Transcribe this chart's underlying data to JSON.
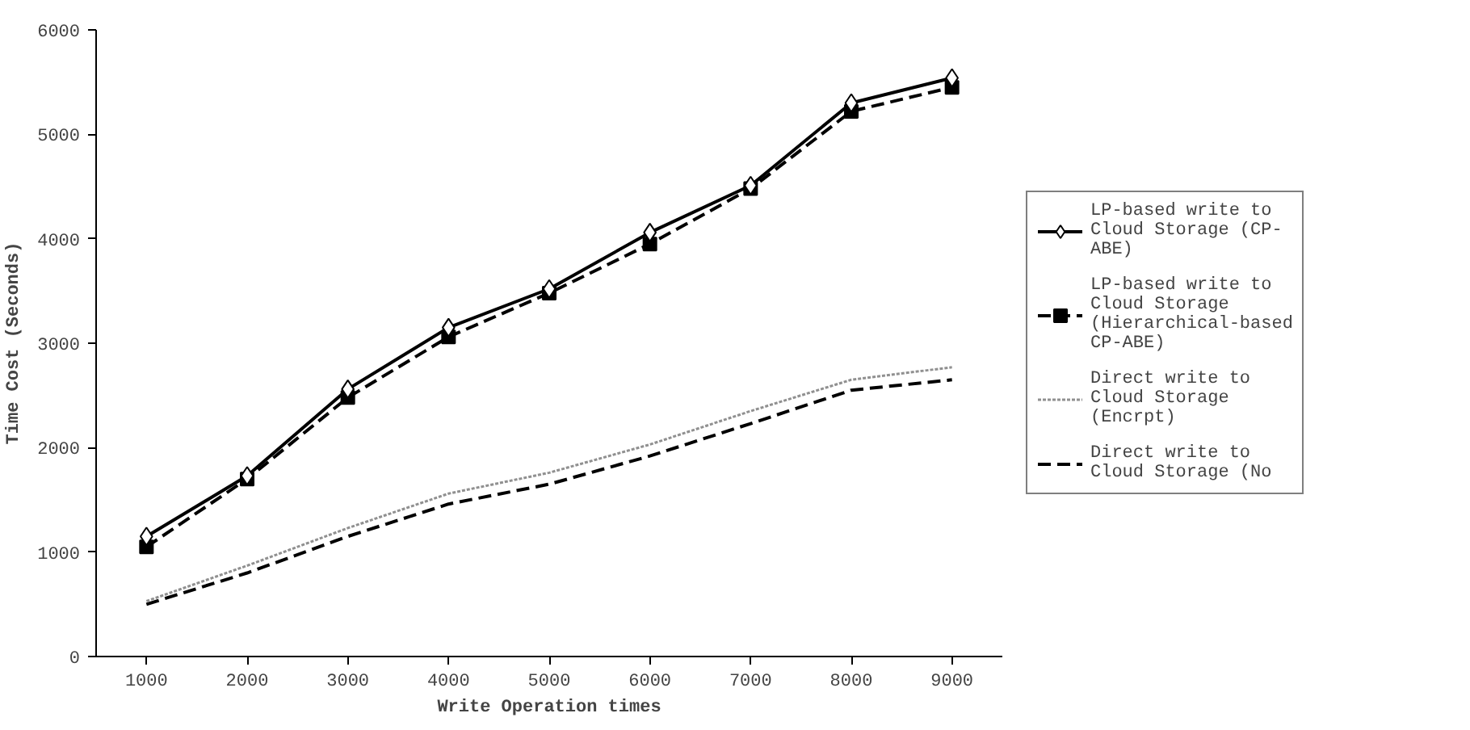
{
  "chart_data": {
    "type": "line",
    "xlabel": "Write Operation times",
    "ylabel": "Time Cost (Seconds)",
    "categories": [
      "1000",
      "2000",
      "3000",
      "4000",
      "5000",
      "6000",
      "7000",
      "8000",
      "9000"
    ],
    "ylim": [
      0,
      6000
    ],
    "yticks": [
      0,
      1000,
      2000,
      3000,
      4000,
      5000,
      6000
    ],
    "grid": false,
    "legend": "right",
    "series": [
      {
        "name": "LP-based write to Cloud Storage (CP-ABE)",
        "color": "#000000",
        "marker": "diamond",
        "line_style": "solid",
        "values": [
          1150,
          1730,
          2560,
          3150,
          3520,
          4060,
          4510,
          5300,
          5540
        ]
      },
      {
        "name": "LP-based write to Cloud Storage (Hierarchical-based CP-ABE)",
        "color": "#000000",
        "marker": "square",
        "line_style": "dashed",
        "values": [
          1050,
          1700,
          2480,
          3060,
          3480,
          3950,
          4480,
          5220,
          5450
        ]
      },
      {
        "name": "Direct write to Cloud Storage (Encrpt)",
        "color": "#909090",
        "marker": "none",
        "line_style": "dotted",
        "values": [
          530,
          870,
          1230,
          1560,
          1760,
          2030,
          2350,
          2650,
          2770
        ]
      },
      {
        "name": "Direct write to Cloud Storage (No",
        "color": "#000000",
        "marker": "none",
        "line_style": "dashed",
        "values": [
          500,
          800,
          1150,
          1460,
          1650,
          1920,
          2230,
          2550,
          2650
        ]
      }
    ]
  }
}
